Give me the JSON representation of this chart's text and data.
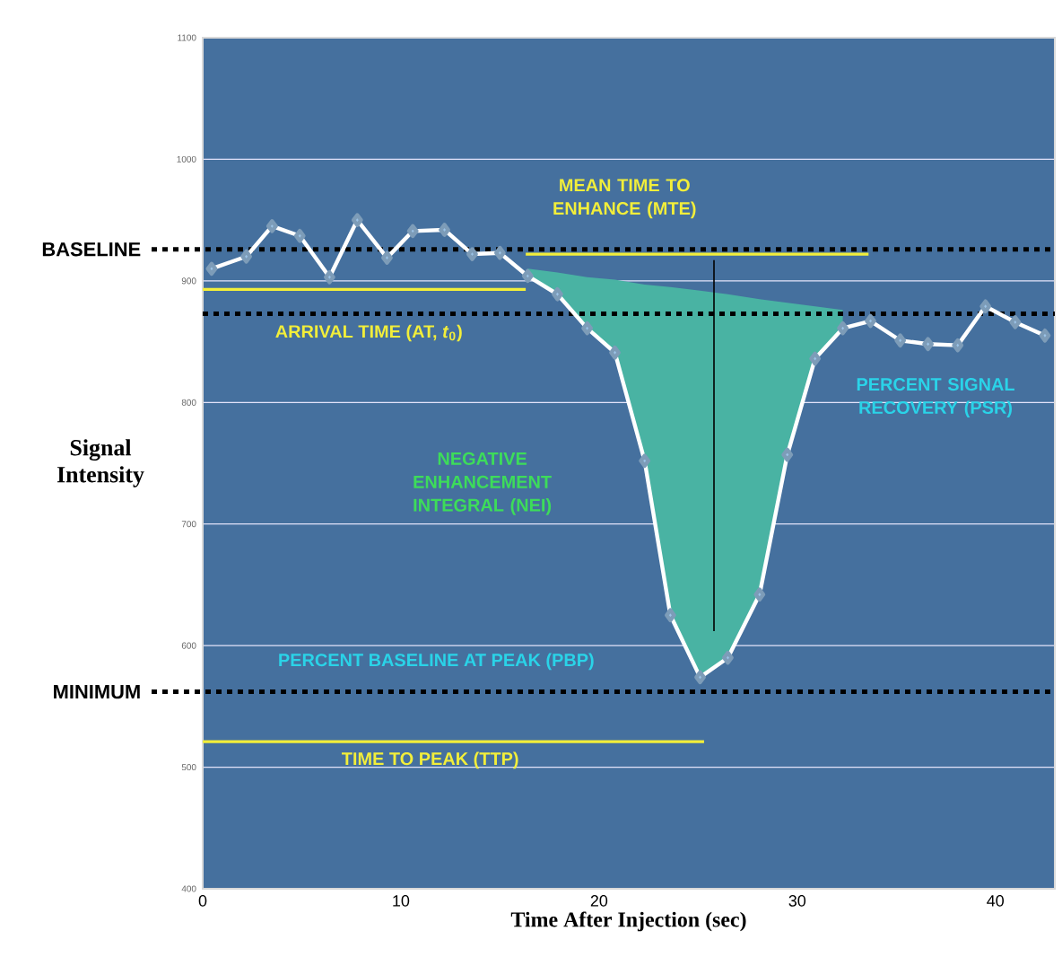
{
  "chart_data": {
    "type": "line",
    "xlabel": "Time After Injection (sec)",
    "ylabel": "Signal Intensity",
    "xlim": [
      0,
      43
    ],
    "ylim": [
      400,
      1100
    ],
    "xticks": [
      0,
      10,
      20,
      30,
      40
    ],
    "yticks": [
      400,
      500,
      600,
      700,
      800,
      900,
      1000,
      1100
    ],
    "grid": "y",
    "series": [
      {
        "color": "#ffffff",
        "marker": "diamond",
        "line_style": "solid",
        "x": [
          0.45,
          2.2,
          3.5,
          4.9,
          6.4,
          7.8,
          9.3,
          10.6,
          12.2,
          13.6,
          15,
          16.4,
          17.9,
          19.4,
          20.8,
          22.3,
          23.6,
          25.1,
          26.5,
          28.1,
          29.5,
          30.9,
          32.3,
          33.7,
          35.2,
          36.6,
          38.1,
          39.5,
          41,
          42.5
        ],
        "values": [
          910,
          920,
          945,
          937,
          903,
          950,
          919,
          941,
          942,
          922,
          923,
          904,
          889,
          861,
          841,
          752,
          625,
          574,
          590,
          642,
          757,
          836,
          861,
          867,
          851,
          848,
          847,
          879,
          866,
          855
        ],
        "upper": [
          null,
          null,
          null,
          null,
          null,
          null,
          null,
          null,
          null,
          null,
          null,
          910,
          907,
          903,
          901,
          897,
          895,
          892,
          889,
          885,
          882,
          879,
          876,
          null,
          null,
          null,
          null,
          null,
          null,
          null
        ],
        "lower": [
          null,
          null,
          null,
          null,
          null,
          null,
          null,
          null,
          null,
          null,
          null,
          904,
          889,
          861,
          841,
          752,
          625,
          574,
          590,
          642,
          757,
          836,
          861,
          null,
          null,
          null,
          null,
          null,
          null,
          null
        ]
      },
      {
        "color": "#f2ee3a",
        "marker": "none",
        "line_style": "solid",
        "x": [
          0,
          16.3
        ],
        "values": [
          893,
          893
        ]
      },
      {
        "color": "#f2ee3a",
        "marker": "none",
        "line_style": "solid",
        "x": [
          16.3,
          33.6
        ],
        "values": [
          922,
          922
        ]
      },
      {
        "color": "#f2ee3a",
        "marker": "none",
        "line_style": "solid",
        "x": [
          0,
          25.3
        ],
        "values": [
          521,
          521
        ]
      },
      {
        "color": "#000000",
        "marker": "none",
        "line_style": "solid",
        "x": [
          25.8,
          25.8
        ],
        "values": [
          917,
          612
        ]
      }
    ],
    "ref_lines": [
      {
        "axis": "y",
        "value": 926,
        "label": "BASELINE",
        "color": "#000000",
        "line_style": "dotted"
      },
      {
        "axis": "y",
        "value": 562,
        "label": "MINIMUM",
        "color": "#000000",
        "line_style": "dotted"
      },
      {
        "axis": "y",
        "value": 873,
        "color": "#000000",
        "line_style": "dotted"
      }
    ],
    "annotations": [
      "MEAN TIME TO ENHANCE (MTE)",
      "ARRIVAL TIME (AT, *t*$_{0}$)",
      "NEGATIVE ENHANCEMENT INTEGRAL (NEI)",
      "PERCENT SIGNAL RECOVERY (PSR)",
      "PERCENT BASELINE AT PEAK (PBP)",
      "TIME TO PEAK (TTP)"
    ]
  }
}
